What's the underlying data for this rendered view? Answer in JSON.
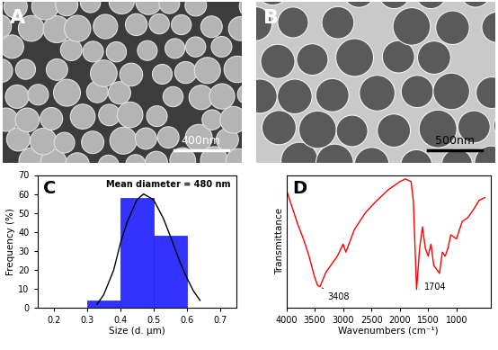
{
  "chart_data": [
    {
      "type": "image",
      "title": "A",
      "annotations": [
        "400nm"
      ]
    },
    {
      "type": "image",
      "title": "B",
      "annotations": [
        "500nm"
      ]
    },
    {
      "type": "histogram",
      "title": "C",
      "x_label": "Size (d. µm)",
      "y_label": "Frequency (%)",
      "bins": [
        0.3,
        0.4,
        0.5,
        0.6
      ],
      "counts": [
        4,
        58,
        38
      ],
      "color": "#3333ff",
      "series": [
        {
          "type": "line",
          "color": "#000000",
          "x": [
            0.33,
            0.35,
            0.38,
            0.4,
            0.42,
            0.45,
            0.47,
            0.5,
            0.53,
            0.55,
            0.58,
            0.6,
            0.62,
            0.64
          ],
          "values": [
            2,
            7,
            20,
            34,
            45,
            57,
            60,
            57,
            47,
            38,
            24,
            16,
            9,
            4
          ]
        }
      ],
      "annotations": [
        "Mean diameter = 480 nm"
      ],
      "xlim": [
        0.15,
        0.75
      ],
      "xticks": [
        0.2,
        0.3,
        0.4,
        0.5,
        0.6,
        0.7
      ],
      "ylim": [
        0,
        70
      ],
      "yticks": [
        0,
        10,
        20,
        30,
        40,
        50,
        60,
        70
      ]
    },
    {
      "type": "line",
      "title": "D",
      "x_label": "Wavenumbers (cm⁻¹)",
      "y_label": "Transmittance",
      "x": [
        4000,
        3800,
        3700,
        3600,
        3500,
        3450,
        3408,
        3300,
        3100,
        3000,
        2950,
        2800,
        2600,
        2400,
        2200,
        2000,
        1900,
        1800,
        1760,
        1704,
        1650,
        1600,
        1550,
        1500,
        1450,
        1400,
        1300,
        1250,
        1200,
        1150,
        1100,
        1000,
        900,
        800,
        700,
        600,
        500
      ],
      "values": [
        89,
        63,
        52,
        39,
        23,
        17,
        16,
        27,
        39,
        48,
        42,
        59,
        72,
        81,
        89,
        95,
        97,
        95,
        80,
        14,
        45,
        61,
        45,
        39,
        48,
        32,
        26,
        42,
        39,
        45,
        55,
        52,
        65,
        68,
        74,
        81,
        83
      ],
      "color": "#ff0000",
      "annotations": [
        {
          "text": "3408",
          "x": 3408,
          "y": 16
        },
        {
          "text": "1704",
          "x": 1704,
          "y": 14
        }
      ],
      "xlim": [
        4000,
        400
      ],
      "xticks": [
        4000,
        3500,
        3000,
        2500,
        2000,
        1500,
        1000
      ],
      "ylim": [
        0,
        100
      ],
      "yticks": [],
      "tick_labels": "x"
    }
  ]
}
